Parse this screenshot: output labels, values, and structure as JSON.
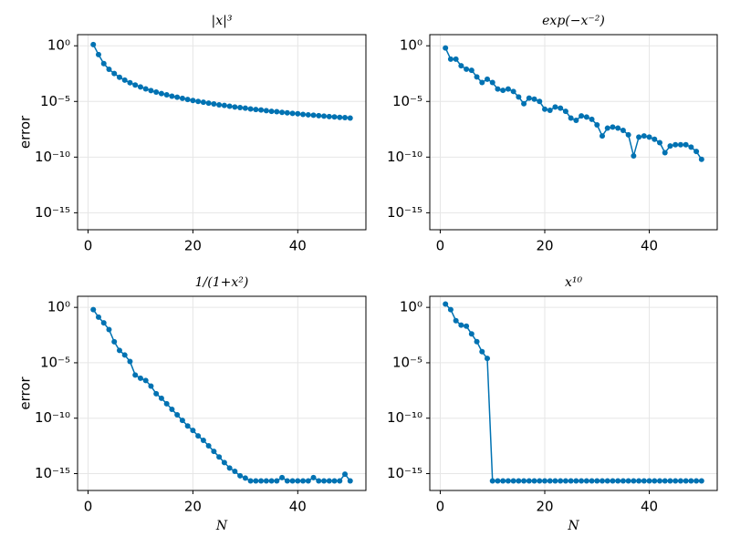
{
  "chart_data": [
    {
      "type": "line",
      "title": "|x|³",
      "ylabel": "error",
      "log_y": true,
      "grid": true,
      "color": "#0072b2",
      "x": [
        1,
        2,
        3,
        4,
        5,
        6,
        7,
        8,
        9,
        10,
        11,
        12,
        13,
        14,
        15,
        16,
        17,
        18,
        19,
        20,
        21,
        22,
        23,
        24,
        25,
        26,
        27,
        28,
        29,
        30,
        31,
        32,
        33,
        34,
        35,
        36,
        37,
        38,
        39,
        40,
        41,
        42,
        43,
        44,
        45,
        46,
        47,
        48,
        49,
        50
      ],
      "values": [
        1.3,
        0.16,
        0.025,
        0.0077,
        0.0032,
        0.0015,
        0.00082,
        0.00048,
        0.0003,
        0.0002,
        0.000135,
        9.5e-05,
        6.9e-05,
        5.1e-05,
        3.9e-05,
        3e-05,
        2.4e-05,
        1.9e-05,
        1.5e-05,
        1.2e-05,
        1e-05,
        8.5e-06,
        7.1e-06,
        6e-06,
        5e-06,
        4.4e-06,
        3.7e-06,
        3.2e-06,
        2.8e-06,
        2.5e-06,
        2.1e-06,
        1.9e-06,
        1.7e-06,
        1.5e-06,
        1.3e-06,
        1.2e-06,
        1.05e-06,
        9.5e-07,
        8.5e-07,
        7.8e-07,
        6.9e-07,
        6.3e-07,
        5.8e-07,
        5.3e-07,
        4.8e-07,
        4.4e-07,
        4.1e-07,
        3.7e-07,
        3.5e-07,
        3.2e-07
      ],
      "xlim": [
        -2,
        53
      ],
      "xticks": [
        0,
        20,
        40
      ],
      "ylim": [
        3e-17,
        10
      ],
      "yticks": [
        {
          "value": 1,
          "label": "10⁰"
        },
        {
          "value": 1e-05,
          "label": "10⁻⁵"
        },
        {
          "value": 1e-10,
          "label": "10⁻¹⁰"
        },
        {
          "value": 1e-15,
          "label": "10⁻¹⁵"
        }
      ]
    },
    {
      "type": "line",
      "title": "exp(−x⁻²)",
      "log_y": true,
      "grid": true,
      "color": "#0072b2",
      "x": [
        1,
        2,
        3,
        4,
        5,
        6,
        7,
        8,
        9,
        10,
        11,
        12,
        13,
        14,
        15,
        16,
        17,
        18,
        19,
        20,
        21,
        22,
        23,
        24,
        25,
        26,
        27,
        28,
        29,
        30,
        31,
        32,
        33,
        34,
        35,
        36,
        37,
        38,
        39,
        40,
        41,
        42,
        43,
        44,
        45,
        46,
        47,
        48,
        49,
        50
      ],
      "values": [
        0.63,
        0.063,
        0.063,
        0.016,
        0.0079,
        0.0063,
        0.0016,
        0.0005,
        0.001,
        0.0005,
        0.00013,
        0.0001,
        0.00013,
        7.9e-05,
        2.5e-05,
        6.3e-06,
        2e-05,
        1.6e-05,
        1e-05,
        2e-06,
        1.6e-06,
        3.2e-06,
        2.5e-06,
        1.3e-06,
        3.2e-07,
        2e-07,
        5e-07,
        4e-07,
        2.5e-07,
        7.9e-08,
        7.9e-09,
        4e-08,
        5e-08,
        4e-08,
        2.5e-08,
        1e-08,
        1.3e-10,
        6.3e-09,
        7.9e-09,
        6.3e-09,
        4e-09,
        2e-09,
        2.5e-10,
        1e-09,
        1.3e-09,
        1.3e-09,
        1.3e-09,
        7.9e-10,
        3.2e-10,
        6.3e-11
      ],
      "xlim": [
        -2,
        53
      ],
      "xticks": [
        0,
        20,
        40
      ],
      "ylim": [
        3e-17,
        10
      ],
      "yticks": [
        {
          "value": 1,
          "label": "10⁰"
        },
        {
          "value": 1e-05,
          "label": "10⁻⁵"
        },
        {
          "value": 1e-10,
          "label": "10⁻¹⁰"
        },
        {
          "value": 1e-15,
          "label": "10⁻¹⁵"
        }
      ]
    },
    {
      "type": "line",
      "title": "1/(1+x²)",
      "xlabel": "N",
      "ylabel": "error",
      "log_y": true,
      "grid": true,
      "color": "#0072b2",
      "x": [
        1,
        2,
        3,
        4,
        5,
        6,
        7,
        8,
        9,
        10,
        11,
        12,
        13,
        14,
        15,
        16,
        17,
        18,
        19,
        20,
        21,
        22,
        23,
        24,
        25,
        26,
        27,
        28,
        29,
        30,
        31,
        32,
        33,
        34,
        35,
        36,
        37,
        38,
        39,
        40,
        41,
        42,
        43,
        44,
        45,
        46,
        47,
        48,
        49,
        50
      ],
      "values": [
        0.63,
        0.13,
        0.04,
        0.01,
        0.00079,
        0.00013,
        5e-05,
        1.3e-05,
        7.9e-07,
        4e-07,
        2.5e-07,
        7.9e-08,
        1.6e-08,
        6.3e-09,
        2e-09,
        6.3e-10,
        2e-10,
        6.3e-11,
        2e-11,
        7.9e-12,
        2.5e-12,
        1e-12,
        3.2e-13,
        1e-13,
        3.2e-14,
        1e-14,
        3.2e-15,
        1.6e-15,
        6.3e-16,
        4e-16,
        2.2e-16,
        2.2e-16,
        2.2e-16,
        2.2e-16,
        2.2e-16,
        2.2e-16,
        4.4e-16,
        2.2e-16,
        2.2e-16,
        2.2e-16,
        2.2e-16,
        2.2e-16,
        4.4e-16,
        2.2e-16,
        2.2e-16,
        2.2e-16,
        2.2e-16,
        2.2e-16,
        8.9e-16,
        2.2e-16
      ],
      "xlim": [
        -2,
        53
      ],
      "xticks": [
        0,
        20,
        40
      ],
      "ylim": [
        3e-17,
        10
      ],
      "yticks": [
        {
          "value": 1,
          "label": "10⁰"
        },
        {
          "value": 1e-05,
          "label": "10⁻⁵"
        },
        {
          "value": 1e-10,
          "label": "10⁻¹⁰"
        },
        {
          "value": 1e-15,
          "label": "10⁻¹⁵"
        }
      ]
    },
    {
      "type": "line",
      "title": "x¹⁰",
      "xlabel": "N",
      "log_y": true,
      "grid": true,
      "color": "#0072b2",
      "x": [
        1,
        2,
        3,
        4,
        5,
        6,
        7,
        8,
        9,
        10,
        11,
        12,
        13,
        14,
        15,
        16,
        17,
        18,
        19,
        20,
        21,
        22,
        23,
        24,
        25,
        26,
        27,
        28,
        29,
        30,
        31,
        32,
        33,
        34,
        35,
        36,
        37,
        38,
        39,
        40,
        41,
        42,
        43,
        44,
        45,
        46,
        47,
        48,
        49,
        50
      ],
      "values": [
        2,
        0.63,
        0.063,
        0.025,
        0.02,
        0.004,
        0.0008,
        0.0001,
        2.5e-05,
        2.2e-16,
        2.2e-16,
        2.2e-16,
        2.2e-16,
        2.2e-16,
        2.2e-16,
        2.2e-16,
        2.2e-16,
        2.2e-16,
        2.2e-16,
        2.2e-16,
        2.2e-16,
        2.2e-16,
        2.2e-16,
        2.2e-16,
        2.2e-16,
        2.2e-16,
        2.2e-16,
        2.2e-16,
        2.2e-16,
        2.2e-16,
        2.2e-16,
        2.2e-16,
        2.2e-16,
        2.2e-16,
        2.2e-16,
        2.2e-16,
        2.2e-16,
        2.2e-16,
        2.2e-16,
        2.2e-16,
        2.2e-16,
        2.2e-16,
        2.2e-16,
        2.2e-16,
        2.2e-16,
        2.2e-16,
        2.2e-16,
        2.2e-16,
        2.2e-16,
        2.2e-16
      ],
      "xlim": [
        -2,
        53
      ],
      "xticks": [
        0,
        20,
        40
      ],
      "ylim": [
        3e-17,
        10
      ],
      "yticks": [
        {
          "value": 1,
          "label": "10⁰"
        },
        {
          "value": 1e-05,
          "label": "10⁻⁵"
        },
        {
          "value": 1e-10,
          "label": "10⁻¹⁰"
        },
        {
          "value": 1e-15,
          "label": "10⁻¹⁵"
        }
      ]
    }
  ]
}
